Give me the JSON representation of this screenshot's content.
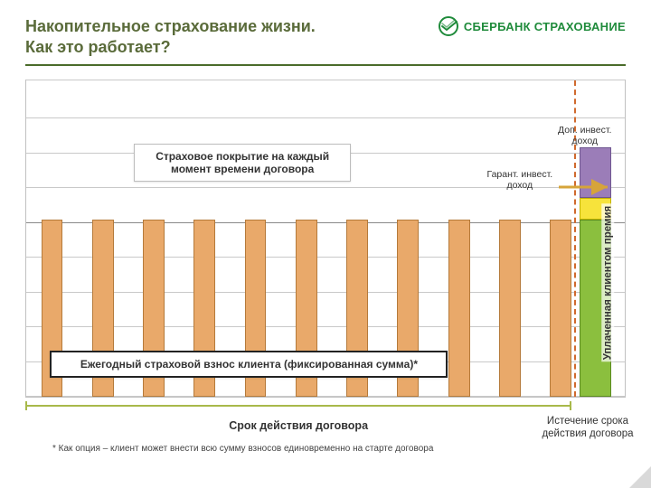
{
  "header": {
    "title_line1": "Накопительное страхование жизни.",
    "title_line2": "Как это работает?",
    "brand": "СБЕРБАНК СТРАХОВАНИЕ"
  },
  "chart": {
    "type": "bar",
    "background_color": "#ffffff",
    "gridline_color": "#c9c9c9",
    "frame_border_color": "#c1c1c1",
    "gridline_positions_pct": [
      0,
      11,
      22,
      33,
      44,
      55,
      66,
      77,
      88,
      100
    ],
    "dark_gridline_at_pct": 55,
    "bars": {
      "count": 11,
      "left_pct": [
        2.5,
        11,
        19.5,
        28,
        36.5,
        45,
        53.5,
        62,
        70.5,
        79,
        87.5
      ],
      "width_pct": 3.6,
      "height_pct": 56,
      "fill": "#e9a96a",
      "border": "#b57a3a"
    },
    "final_stack": {
      "left_pct": 92.5,
      "width_pct": 5.2,
      "segments": [
        {
          "name": "premium",
          "color": "#8bbf3e",
          "height_pct": 56,
          "border": "#5a8a1e"
        },
        {
          "name": "guarant",
          "color": "#f7e33b",
          "height_pct": 7,
          "border": "#c4b400"
        },
        {
          "name": "addl",
          "color": "#9b7db8",
          "height_pct": 16,
          "border": "#6f5690"
        }
      ]
    }
  },
  "callouts": {
    "coverage": "Страховое покрытие на каждый момент времени договора",
    "annual_contrib": "Ежегодный страховой взнос клиента (фиксированная сумма)*"
  },
  "labels": {
    "addl_income": "Доп. инвест. доход",
    "guarant_income": "Гарант. инвест. доход",
    "premium_vertical": "Уплаченная клиентом премия",
    "contract_term": "Срок действия договора",
    "expiry": "Истечение срока действия договора"
  },
  "footnote": "* Как опция – клиент может внести всю сумму взносов единовременно на старте договора",
  "colors": {
    "title": "#5a6b3a",
    "header_rule": "#4a6b2a",
    "brand_green": "#1f8b3b",
    "bracket": "#a8b94a",
    "arrow_gold": "#d6a43a",
    "dash_orange": "#d06a2e"
  }
}
